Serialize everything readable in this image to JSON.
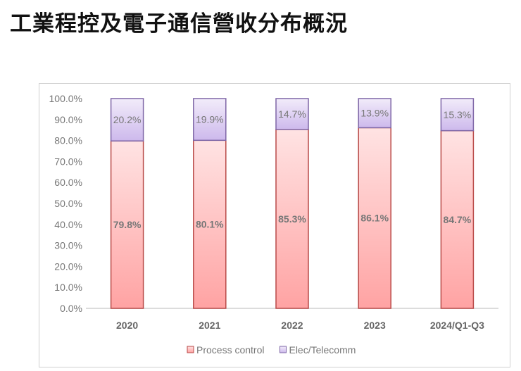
{
  "title": "工業程控及電子通信營收分布概況",
  "chart_data": {
    "type": "bar",
    "stacked": true,
    "categories": [
      "2020",
      "2021",
      "2022",
      "2023",
      "2024/Q1-Q3"
    ],
    "series": [
      {
        "name": "Process control",
        "values": [
          79.8,
          80.1,
          85.3,
          86.1,
          84.7
        ],
        "labels": [
          "79.8%",
          "80.1%",
          "85.3%",
          "86.1%",
          "84.7%"
        ],
        "fill_top": "#ffe3e3",
        "fill_bottom": "#ffa3a3",
        "stroke": "#b94a48"
      },
      {
        "name": "Elec/Telecomm",
        "values": [
          20.2,
          19.9,
          14.7,
          13.9,
          15.3
        ],
        "labels": [
          "20.2%",
          "19.9%",
          "14.7%",
          "13.9%",
          "15.3%"
        ],
        "fill_top": "#f2ecfa",
        "fill_bottom": "#cdb9ec",
        "stroke": "#7e66a6"
      }
    ],
    "ylim": [
      0,
      100
    ],
    "yticks": [
      "0.0%",
      "10.0%",
      "20.0%",
      "30.0%",
      "40.0%",
      "50.0%",
      "60.0%",
      "70.0%",
      "80.0%",
      "90.0%",
      "100.0%"
    ],
    "grid": false,
    "legend": "bottom"
  }
}
